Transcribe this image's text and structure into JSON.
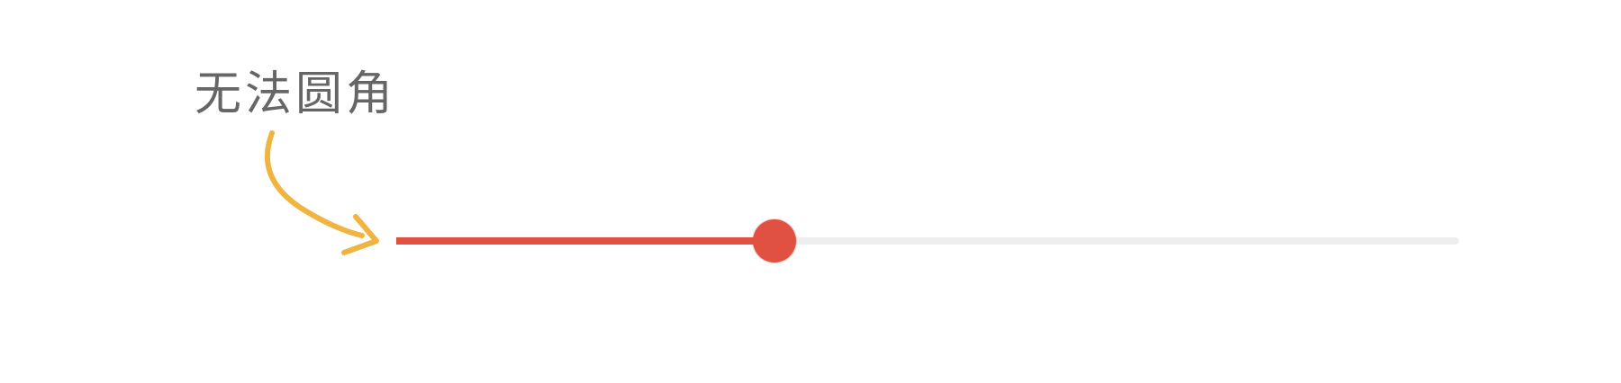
{
  "annotation": {
    "label": "无法圆角",
    "color": "#666666",
    "arrow_color": "#f0b440",
    "arrow_icon": "curved-arrow-icon"
  },
  "slider": {
    "value_fraction": 0.356,
    "fill_color": "#e05141",
    "track_color": "#eeeeee",
    "thumb_color": "#e05141"
  }
}
